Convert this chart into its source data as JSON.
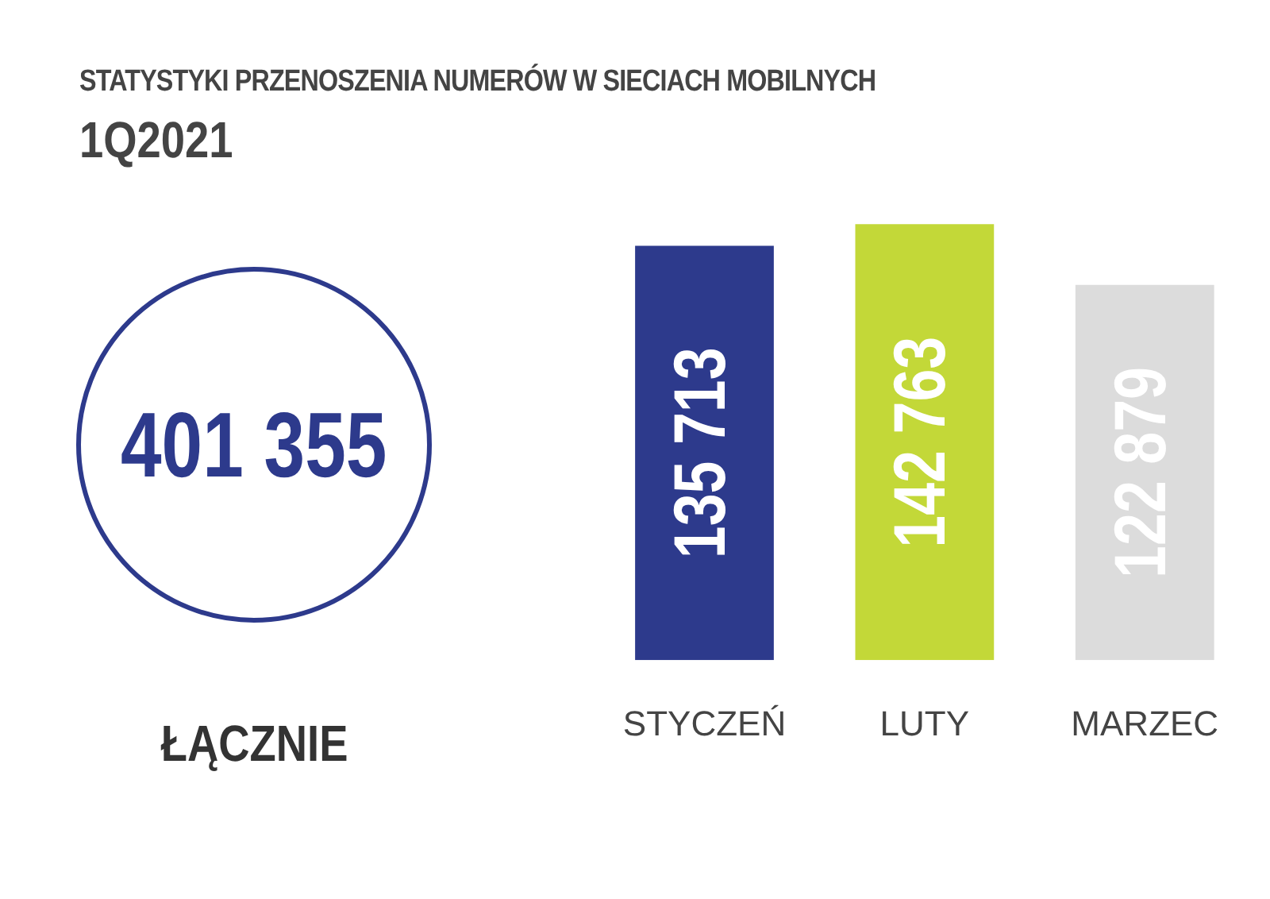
{
  "chart_data": [
    {
      "type": "other",
      "title": "STATYSTYKI PRZENOSZENIA NUMERÓW W SIECIACH MOBILNYCH",
      "subtitle": "1Q2021",
      "annotations": [
        "401 355",
        "ŁĄCZNIE"
      ],
      "color": "#2d3a8c"
    },
    {
      "type": "bar",
      "categories": [
        "STYCZEŃ",
        "LUTY",
        "MARZEC"
      ],
      "values": [
        135713,
        142763,
        122879
      ],
      "colors": [
        "#2d3a8c",
        "#c3d838",
        "#dcdcdc"
      ],
      "value_labels": [
        "135 713",
        "142 763",
        "122 879"
      ],
      "grid": false,
      "tick_labels": "x"
    }
  ]
}
